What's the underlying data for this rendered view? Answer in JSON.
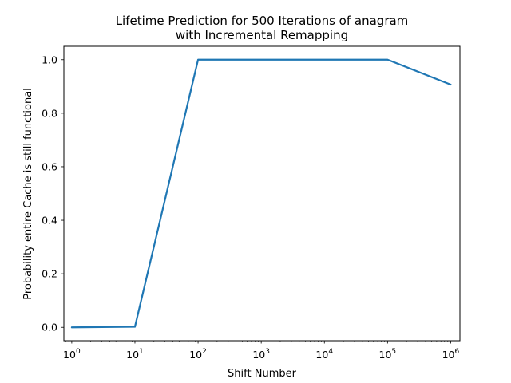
{
  "chart_data": {
    "type": "line",
    "title_lines": [
      "Lifetime Prediction for 500 Iterations of anagram",
      "with Incremental Remapping"
    ],
    "xlabel": "Shift Number",
    "ylabel": "Probability entire Cache is still functional",
    "x_scale": "log",
    "xlim": [
      0.75,
      1400000
    ],
    "ylim": [
      -0.05,
      1.05
    ],
    "x_ticks": [
      {
        "value": 1,
        "base": "10",
        "exp": "0"
      },
      {
        "value": 10,
        "base": "10",
        "exp": "1"
      },
      {
        "value": 100,
        "base": "10",
        "exp": "2"
      },
      {
        "value": 1000,
        "base": "10",
        "exp": "3"
      },
      {
        "value": 10000,
        "base": "10",
        "exp": "4"
      },
      {
        "value": 100000,
        "base": "10",
        "exp": "5"
      },
      {
        "value": 1000000,
        "base": "10",
        "exp": "6"
      }
    ],
    "y_ticks": [
      {
        "value": 0.0,
        "label": "0.0"
      },
      {
        "value": 0.2,
        "label": "0.2"
      },
      {
        "value": 0.4,
        "label": "0.4"
      },
      {
        "value": 0.6,
        "label": "0.6"
      },
      {
        "value": 0.8,
        "label": "0.8"
      },
      {
        "value": 1.0,
        "label": "1.0"
      }
    ],
    "grid": false,
    "line_color": "#1f77b4",
    "series": [
      {
        "x": [
          1,
          10,
          100,
          1000,
          10000,
          100000,
          1000000
        ],
        "y": [
          0.0,
          0.002,
          1.0,
          1.0,
          1.0,
          1.0,
          0.907
        ]
      }
    ]
  }
}
